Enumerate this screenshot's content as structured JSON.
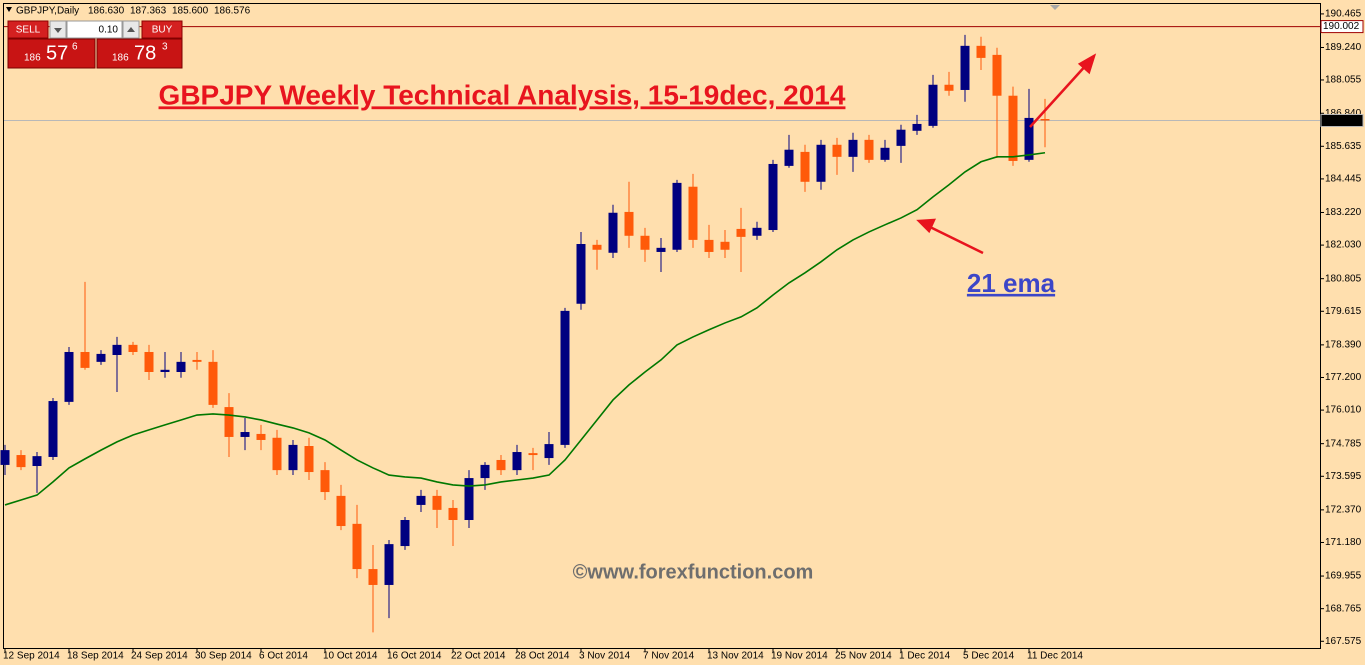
{
  "chart_data": {
    "type": "candlestick",
    "title": "GBPJPY Weekly Technical Analysis, 15-19dec, 2014",
    "symbol": "GBPJPY,Daily",
    "header_ohlc": [
      "186.630",
      "187.363",
      "185.600",
      "186.576"
    ],
    "watermark": "©www.forexfunction.com",
    "categories": [
      "12 Sep 2014",
      null,
      null,
      null,
      "18 Sep 2014",
      null,
      null,
      null,
      "24 Sep 2014",
      null,
      null,
      null,
      "30 Sep 2014",
      null,
      null,
      null,
      "6 Oct 2014",
      null,
      null,
      null,
      "10 Oct 2014",
      null,
      null,
      null,
      "16 Oct 2014",
      null,
      null,
      null,
      "22 Oct 2014",
      null,
      null,
      null,
      "28 Oct 2014",
      null,
      null,
      null,
      "3 Nov 2014",
      null,
      null,
      null,
      "7 Nov 2014",
      null,
      null,
      null,
      "13 Nov 2014",
      null,
      null,
      null,
      "19 Nov 2014",
      null,
      null,
      null,
      "25 Nov 2014",
      null,
      null,
      null,
      "1 Dec 2014",
      null,
      null,
      null,
      "5 Dec 2014",
      null,
      null,
      null,
      "11 Dec 2014",
      null
    ],
    "open": [
      174.01,
      174.37,
      173.97,
      174.3,
      176.31,
      178.13,
      177.77,
      178.02,
      178.39,
      178.13,
      177.4,
      177.4,
      177.84,
      177.77,
      176.12,
      175.03,
      175.14,
      175.0,
      173.82,
      174.7,
      173.82,
      172.88,
      171.86,
      170.21,
      169.63,
      171.05,
      172.55,
      172.88,
      172.44,
      172.0,
      173.53,
      174.19,
      173.82,
      174.44,
      174.26,
      174.74,
      179.89,
      182.04,
      181.75,
      183.24,
      182.37,
      181.78,
      181.86,
      184.16,
      182.22,
      182.15,
      182.62,
      182.37,
      182.58,
      184.92,
      185.43,
      184.34,
      185.69,
      185.25,
      185.87,
      185.14,
      185.65,
      186.2,
      186.38,
      187.88,
      187.69,
      189.3,
      188.97,
      187.48,
      185.14,
      186.63
    ],
    "high": [
      174.74,
      174.55,
      174.48,
      176.45,
      178.31,
      180.69,
      178.2,
      178.68,
      178.5,
      178.39,
      178.13,
      178.13,
      178.13,
      178.2,
      176.63,
      175.72,
      175.47,
      175.29,
      174.92,
      175.0,
      174.11,
      173.28,
      172.55,
      171.09,
      171.27,
      172.11,
      173.1,
      173.1,
      172.73,
      173.82,
      174.11,
      174.37,
      174.74,
      174.63,
      175.21,
      179.74,
      182.51,
      182.22,
      183.5,
      184.34,
      182.66,
      182.29,
      184.41,
      184.63,
      182.77,
      182.58,
      183.39,
      182.88,
      185.14,
      186.05,
      185.69,
      185.87,
      185.94,
      186.13,
      186.05,
      185.87,
      186.42,
      186.78,
      188.24,
      188.35,
      189.7,
      189.63,
      189.23,
      187.81,
      187.73,
      187.363
    ],
    "low": [
      173.64,
      173.82,
      172.99,
      174.19,
      176.2,
      177.48,
      177.66,
      176.67,
      178.02,
      177.11,
      177.19,
      177.19,
      177.48,
      176.09,
      174.3,
      174.55,
      174.55,
      173.64,
      173.64,
      173.46,
      172.73,
      171.63,
      169.88,
      167.9,
      168.42,
      170.91,
      172.29,
      171.71,
      171.05,
      171.71,
      173.1,
      173.64,
      173.64,
      173.82,
      174.01,
      174.63,
      179.67,
      181.13,
      181.56,
      181.93,
      181.42,
      181.05,
      181.78,
      181.93,
      181.56,
      181.56,
      181.05,
      182.22,
      182.51,
      184.85,
      183.97,
      184.05,
      184.59,
      184.7,
      185.03,
      185.07,
      185.03,
      186.05,
      186.31,
      187.48,
      187.26,
      188.42,
      185.21,
      184.92,
      185.07,
      185.6
    ],
    "close": [
      174.55,
      173.93,
      174.33,
      176.34,
      178.13,
      177.55,
      178.06,
      178.39,
      178.13,
      177.4,
      177.48,
      177.77,
      177.77,
      176.2,
      175.03,
      175.21,
      174.92,
      173.82,
      174.74,
      173.75,
      173.02,
      171.78,
      170.21,
      169.63,
      171.12,
      172.0,
      172.88,
      172.37,
      172.0,
      173.53,
      174.01,
      173.82,
      174.48,
      174.37,
      174.77,
      179.63,
      182.07,
      181.86,
      183.21,
      182.37,
      181.86,
      181.93,
      184.3,
      182.22,
      181.78,
      181.86,
      182.33,
      182.66,
      184.99,
      185.51,
      184.34,
      185.69,
      185.25,
      185.87,
      185.14,
      185.58,
      186.24,
      186.45,
      187.88,
      187.66,
      189.3,
      188.86,
      187.48,
      185.1,
      186.67,
      186.576
    ],
    "up_color": "#000080",
    "down_color": "#ff5a0a",
    "ema": {
      "name": "21 ema",
      "color": "#007800",
      "values": [
        172.55,
        172.73,
        172.91,
        173.39,
        173.9,
        174.23,
        174.55,
        174.85,
        175.1,
        175.29,
        175.47,
        175.65,
        175.83,
        175.87,
        175.83,
        175.76,
        175.65,
        175.5,
        175.36,
        175.18,
        174.92,
        174.55,
        174.19,
        173.9,
        173.64,
        173.57,
        173.53,
        173.39,
        173.28,
        173.24,
        173.28,
        173.39,
        173.46,
        173.53,
        173.64,
        174.19,
        174.92,
        175.65,
        176.38,
        176.93,
        177.4,
        177.84,
        178.39,
        178.68,
        178.94,
        179.19,
        179.41,
        179.74,
        180.21,
        180.65,
        181.02,
        181.42,
        181.86,
        182.22,
        182.51,
        182.77,
        183.02,
        183.32,
        183.79,
        184.23,
        184.7,
        185.07,
        185.25,
        185.25,
        185.32,
        185.4
      ]
    },
    "hlines": [
      {
        "value": 190.002,
        "color": "#a00000"
      },
      {
        "value": 186.576,
        "color": "#b8b8b8"
      }
    ],
    "ylim": [
      167.33,
      190.79
    ],
    "yticks": [
      190.465,
      189.24,
      188.055,
      186.84,
      185.635,
      184.445,
      183.22,
      182.03,
      180.805,
      179.615,
      178.39,
      177.2,
      176.01,
      174.785,
      173.595,
      172.37,
      171.18,
      169.955,
      168.765,
      167.575
    ],
    "ytick_labels": [
      "190.465",
      "189.240",
      "188.055",
      "186.840",
      "185.635",
      "184.445",
      "183.220",
      "182.030",
      "180.805",
      "179.615",
      "178.390",
      "177.200",
      "176.010",
      "174.785",
      "173.595",
      "172.370",
      "171.180",
      "169.955",
      "168.765",
      "167.575"
    ]
  },
  "trade_panel": {
    "sell": "SELL",
    "buy": "BUY",
    "lot": "0.10",
    "sell_price": [
      "186",
      "57",
      "6"
    ],
    "buy_price": [
      "186",
      "78",
      "3"
    ]
  }
}
